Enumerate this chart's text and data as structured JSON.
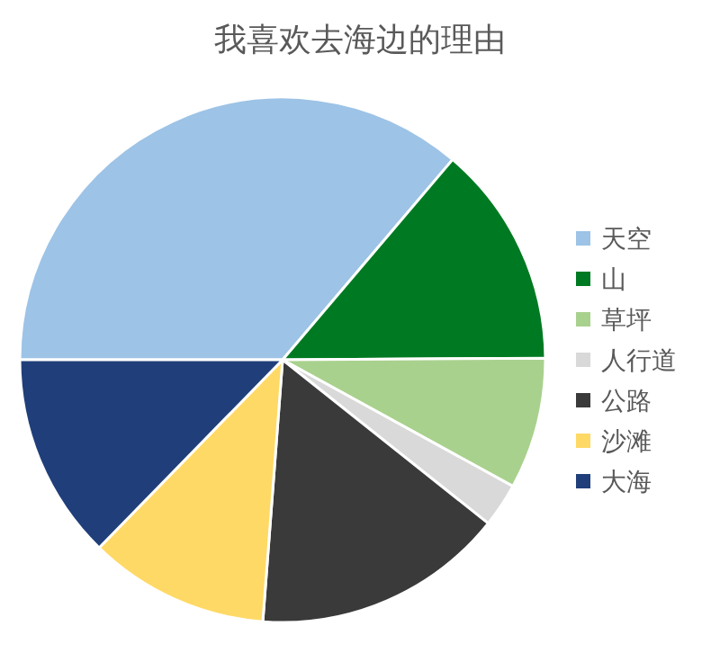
{
  "chart_data": {
    "type": "pie",
    "title": "我喜欢去海边的理由",
    "categories": [
      "天空",
      "山",
      "草坪",
      "人行道",
      "公路",
      "沙滩",
      "大海"
    ],
    "values": [
      36.2,
      13.7,
      8.1,
      2.7,
      15.5,
      11.1,
      12.7
    ],
    "colors": [
      "#9dc3e6",
      "#007a22",
      "#a9d18e",
      "#d9d9d9",
      "#3a3a3a",
      "#ffd966",
      "#203f7a"
    ],
    "legend": "right"
  }
}
